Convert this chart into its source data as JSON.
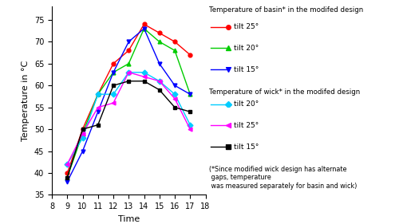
{
  "basin_25": {
    "x": [
      9,
      10,
      11,
      12,
      13,
      14,
      15,
      16,
      17
    ],
    "y": [
      40,
      50,
      58,
      65,
      68,
      74,
      72,
      70,
      67
    ]
  },
  "basin_20": {
    "x": [
      9,
      10,
      11,
      12,
      13,
      14,
      15,
      16,
      17
    ],
    "y": [
      39,
      49,
      58,
      63,
      65,
      73,
      70,
      68,
      58
    ]
  },
  "basin_15": {
    "x": [
      9,
      10,
      11,
      12,
      13,
      14,
      15,
      16,
      17
    ],
    "y": [
      38,
      45,
      54,
      63,
      70,
      73,
      65,
      60,
      58
    ]
  },
  "wick_20": {
    "x": [
      9,
      10,
      11,
      12,
      13,
      14,
      15,
      16,
      17
    ],
    "y": [
      42,
      48,
      58,
      58,
      63,
      63,
      61,
      58,
      51
    ]
  },
  "wick_25": {
    "x": [
      9,
      10,
      11,
      12,
      13,
      14,
      15,
      16,
      17
    ],
    "y": [
      42,
      49,
      55,
      56,
      63,
      62,
      61,
      57,
      50
    ]
  },
  "wick_15": {
    "x": [
      9,
      10,
      11,
      12,
      13,
      14,
      15,
      16,
      17
    ],
    "y": [
      39,
      50,
      51,
      60,
      61,
      61,
      59,
      55,
      54
    ]
  },
  "colors": {
    "basin_25": "#ff0000",
    "basin_20": "#00cc00",
    "basin_15": "#0000ff",
    "wick_20": "#00ccff",
    "wick_25": "#ff00ff",
    "wick_15": "#000000"
  },
  "xlabel": "Time",
  "ylabel": "Temperature in °C",
  "xlim": [
    8,
    18
  ],
  "ylim": [
    35,
    78
  ],
  "xticks": [
    8,
    9,
    10,
    11,
    12,
    13,
    14,
    15,
    16,
    17,
    18
  ],
  "yticks": [
    35,
    40,
    45,
    50,
    55,
    60,
    65,
    70,
    75
  ],
  "legend_header1": "Temperature of basin* in the modifed design",
  "legend_header2": "Temperature of wick* in the modifed design",
  "legend_note": "(*Since modified wick design has alternate\n gaps, temperature\n was measured separately for basin and wick)",
  "legend_labels": {
    "basin_25": "tilt 25°",
    "basin_20": "tilt 20°",
    "basin_15": "tilt 15°",
    "wick_20": "tilt 20°",
    "wick_25": "tilt 25°",
    "wick_15": "tilt 15°"
  }
}
